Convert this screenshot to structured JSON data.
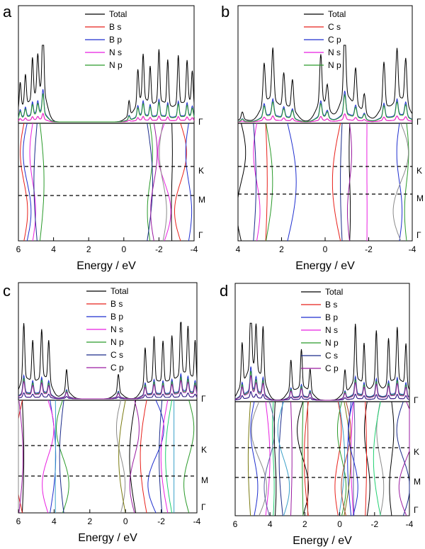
{
  "chart_data": [
    {
      "type": "line",
      "panel": "a",
      "xlabel": "Energy / eV",
      "xlim": [
        6,
        -4
      ],
      "x_ticks": [
        6,
        4,
        2,
        0,
        -2,
        -4
      ],
      "x_tick_labels": [
        "6",
        "4",
        "2",
        "0",
        "-2",
        "-4"
      ],
      "legend": [
        "Total",
        "B s",
        "B p",
        "N s",
        "N p"
      ],
      "colors": {
        "Total": "#000000",
        "B s": "#e8201a",
        "B p": "#1f2fcf",
        "N s": "#e81fe0",
        "N p": "#2a9a2a"
      },
      "kpoints": [
        "Γ",
        "K",
        "M",
        "Γ"
      ],
      "occupied_band_range": [
        6,
        4.5
      ],
      "unoccupied_band_range": [
        0,
        -4
      ],
      "dos_peaks": [
        {
          "e": 5.9,
          "h": 0.35
        },
        {
          "e": 5.6,
          "h": 0.4
        },
        {
          "e": 5.2,
          "h": 0.55
        },
        {
          "e": 4.9,
          "h": 0.5
        },
        {
          "e": 4.6,
          "h": 1.0
        },
        {
          "e": -0.3,
          "h": 0.2
        },
        {
          "e": -0.8,
          "h": 0.45
        },
        {
          "e": -1.1,
          "h": 0.6
        },
        {
          "e": -1.5,
          "h": 0.5
        },
        {
          "e": -2.0,
          "h": 0.7
        },
        {
          "e": -2.5,
          "h": 0.6
        },
        {
          "e": -3.1,
          "h": 0.65
        },
        {
          "e": -3.6,
          "h": 0.55
        },
        {
          "e": -3.9,
          "h": 0.45
        }
      ],
      "band_count": 12
    },
    {
      "type": "line",
      "panel": "b",
      "xlabel": "Energy / eV",
      "xlim": [
        4,
        -4
      ],
      "x_ticks": [
        4,
        2,
        0,
        -2,
        -4
      ],
      "x_tick_labels": [
        "4",
        "2",
        "0",
        "-2",
        "-4"
      ],
      "legend": [
        "Total",
        "C s",
        "C p",
        "N s",
        "N p"
      ],
      "colors": {
        "Total": "#000000",
        "C s": "#e8201a",
        "C p": "#1f2fcf",
        "N s": "#e81fe0",
        "N p": "#2a9a2a"
      },
      "kpoints": [
        "Γ",
        "K",
        "M",
        "Γ"
      ],
      "occupied_band_range": [
        4,
        1.5
      ],
      "unoccupied_band_range": [
        0.3,
        -4
      ],
      "dos_peaks": [
        {
          "e": 3.8,
          "h": 0.1
        },
        {
          "e": 2.8,
          "h": 0.55
        },
        {
          "e": 2.4,
          "h": 0.7
        },
        {
          "e": 1.9,
          "h": 0.45
        },
        {
          "e": 1.5,
          "h": 0.4
        },
        {
          "e": 0.2,
          "h": 0.65
        },
        {
          "e": -0.1,
          "h": 0.3
        },
        {
          "e": -0.9,
          "h": 1.0
        },
        {
          "e": -1.4,
          "h": 0.5
        },
        {
          "e": -1.8,
          "h": 0.25
        },
        {
          "e": -2.7,
          "h": 0.6
        },
        {
          "e": -3.3,
          "h": 0.7
        },
        {
          "e": -3.7,
          "h": 0.6
        }
      ],
      "band_count": 12
    },
    {
      "type": "line",
      "panel": "c",
      "xlabel": "Energy / eV",
      "xlim": [
        6,
        -4
      ],
      "x_ticks": [
        6,
        4,
        2,
        0,
        -2,
        -4
      ],
      "x_tick_labels": [
        "6",
        "4",
        "2",
        "0",
        "-2",
        "-4"
      ],
      "legend": [
        "Total",
        "B s",
        "B p",
        "N s",
        "N p",
        "C s",
        "C p"
      ],
      "colors": {
        "Total": "#000000",
        "B s": "#e8201a",
        "B p": "#1f2fcf",
        "N s": "#e81fe0",
        "N p": "#2a9a2a",
        "C s": "#1a2a8a",
        "C p": "#9a1aa0"
      },
      "kpoints": [
        "Γ",
        "K",
        "M",
        "Γ"
      ],
      "occupied_band_range": [
        6,
        3.2
      ],
      "unoccupied_band_range": [
        0.5,
        -4
      ],
      "dos_peaks": [
        {
          "e": 5.7,
          "h": 0.75
        },
        {
          "e": 5.2,
          "h": 0.55
        },
        {
          "e": 4.7,
          "h": 0.65
        },
        {
          "e": 4.3,
          "h": 0.55
        },
        {
          "e": 3.3,
          "h": 0.3
        },
        {
          "e": 0.4,
          "h": 0.25
        },
        {
          "e": -1.1,
          "h": 0.5
        },
        {
          "e": -1.6,
          "h": 0.6
        },
        {
          "e": -2.1,
          "h": 0.55
        },
        {
          "e": -2.6,
          "h": 0.6
        },
        {
          "e": -3.1,
          "h": 0.75
        },
        {
          "e": -3.5,
          "h": 0.65
        },
        {
          "e": -3.9,
          "h": 0.55
        }
      ],
      "band_count": 18
    },
    {
      "type": "line",
      "panel": "d",
      "xlabel": "Energy / eV",
      "xlim": [
        6,
        -4
      ],
      "x_ticks": [
        6,
        4,
        2,
        0,
        -2,
        -4
      ],
      "x_tick_labels": [
        "6",
        "4",
        "2",
        "0",
        "-2",
        "-4"
      ],
      "legend": [
        "Total",
        "B s",
        "B p",
        "N s",
        "N p",
        "C s",
        "C p"
      ],
      "colors": {
        "Total": "#000000",
        "B s": "#e8201a",
        "B p": "#1f2fcf",
        "N s": "#e81fe0",
        "N p": "#2a9a2a",
        "C s": "#1a2a8a",
        "C p": "#9a1aa0"
      },
      "kpoints": [
        "Γ",
        "K",
        "M",
        "Γ"
      ],
      "occupied_band_range": [
        6,
        1.6
      ],
      "unoccupied_band_range": [
        0.2,
        -4
      ],
      "dos_peaks": [
        {
          "e": 5.6,
          "h": 0.55
        },
        {
          "e": 5.1,
          "h": 1.0
        },
        {
          "e": 4.8,
          "h": 0.6
        },
        {
          "e": 4.4,
          "h": 0.7
        },
        {
          "e": 2.8,
          "h": 0.4
        },
        {
          "e": 2.2,
          "h": 0.5
        },
        {
          "e": 1.7,
          "h": 0.3
        },
        {
          "e": -0.3,
          "h": 0.3
        },
        {
          "e": -0.9,
          "h": 0.75
        },
        {
          "e": -1.4,
          "h": 0.55
        },
        {
          "e": -2.1,
          "h": 0.7
        },
        {
          "e": -2.8,
          "h": 0.6
        },
        {
          "e": -3.3,
          "h": 0.7
        },
        {
          "e": -3.8,
          "h": 0.55
        }
      ],
      "band_count": 28
    }
  ]
}
